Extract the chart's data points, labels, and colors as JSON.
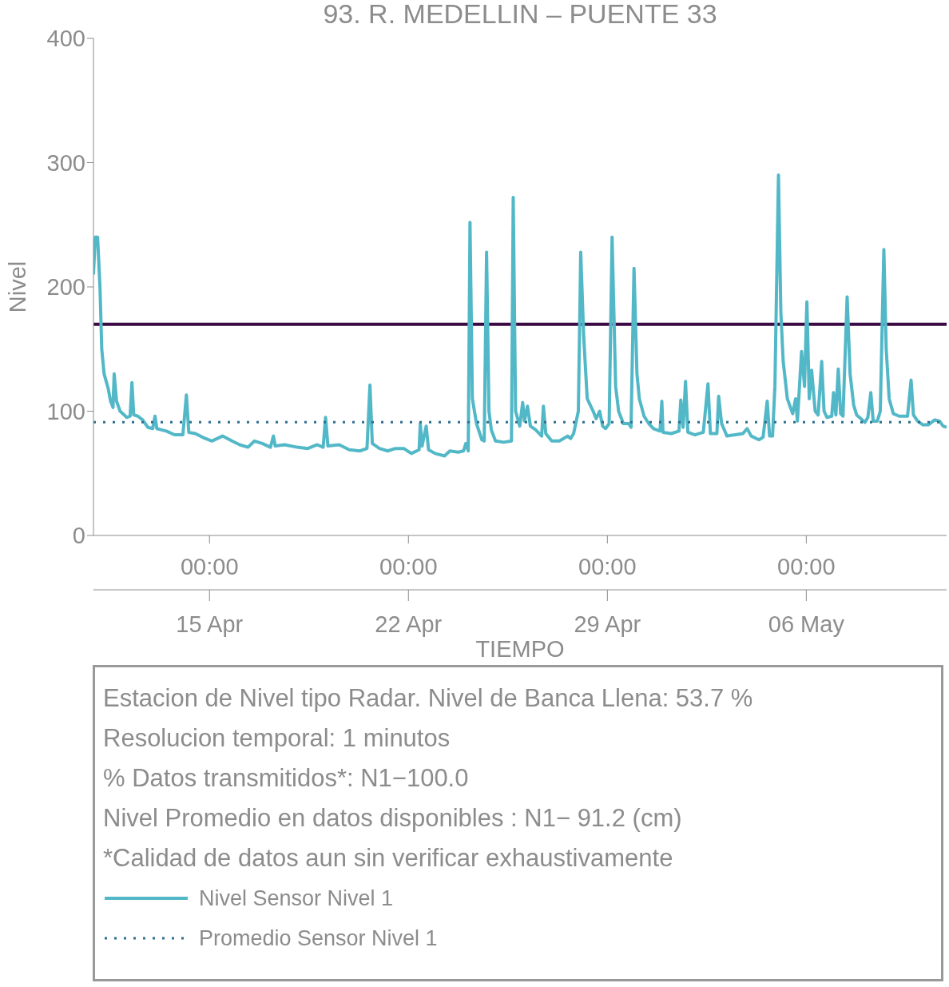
{
  "chart_data": {
    "type": "line",
    "title": "93. R. MEDELLIN – PUENTE 33",
    "xlabel": "TIEMPO",
    "ylabel": "Nivel",
    "annotations": [
      "Estacion de Nivel tipo Radar. Nivel de Banca Llena: 53.7 %",
      "Resolucion temporal: 1 minutos",
      "% Datos transmitidos*: N1−100.0",
      "Nivel Promedio en datos disponibles : N1− 91.2 (cm)",
      "*Calidad de datos aun sin verificar exhaustivamente"
    ],
    "xlim": [
      "--04-10T22:00",
      "--05-10T22:30"
    ],
    "xticks": [
      {
        "value": "--04-15T00:00",
        "label": "00:00"
      },
      {
        "value": "--04-22T00:00",
        "label": "00:00"
      },
      {
        "value": "--04-29T00:00",
        "label": "00:00"
      },
      {
        "value": "--05-06T00:00",
        "label": "00:00"
      }
    ],
    "x2lim": [
      "--04-10T22:00",
      "--05-10T22:30"
    ],
    "x2ticks": [
      {
        "value": "--04-15T00:00",
        "label": "15 Apr"
      },
      {
        "value": "--04-22T00:00",
        "label": "22 Apr"
      },
      {
        "value": "--04-29T00:00",
        "label": "29 Apr"
      },
      {
        "value": "--05-06T00:00",
        "label": "06 May"
      }
    ],
    "ylim": [
      0,
      400
    ],
    "yticks": [
      0,
      100,
      200,
      300,
      400
    ],
    "legend": "bottom",
    "marker": "none",
    "ref_lines": [
      {
        "axis": "y",
        "value": 170,
        "color": "#3b0a45",
        "line_style": "solid"
      }
    ],
    "series": [
      {
        "name": "Nivel Sensor Nivel 1",
        "color": "#52b8c7",
        "line_style": "solid",
        "x": [
          "--04-10T22:00",
          "--04-10T23:30",
          "--04-11T01:30",
          "--04-11T03:30",
          "--04-11T05:00",
          "--04-11T07:00",
          "--04-11T10:30",
          "--04-11T12:30",
          "--04-11T14:30",
          "--04-11T15:30",
          "--04-11T17:30",
          "--04-11T20:30",
          "--04-12T00:00",
          "--04-12T02:00",
          "--04-12T05:00",
          "--04-12T06:30",
          "--04-12T08:00",
          "--04-12T11:30",
          "--04-12T15:30",
          "--04-12T20:00",
          "--04-13T00:00",
          "--04-13T02:00",
          "--04-13T03:30",
          "--04-13T07:30",
          "--04-13T11:30",
          "--04-13T18:30",
          "--04-14T01:30",
          "--04-14T04:30",
          "--04-14T06:30",
          "--04-14T12:00",
          "--04-14T20:30",
          "--04-15T02:00",
          "--04-15T11:00",
          "--04-15T19:00",
          "--04-16T01:30",
          "--04-16T08:30",
          "--04-16T14:00",
          "--04-16T20:30",
          "--04-17T03:30",
          "--04-17T06:00",
          "--04-17T07:30",
          "--04-17T15:30",
          "--04-18T02:00",
          "--04-18T11:00",
          "--04-18T19:00",
          "--04-19T00:00",
          "--04-19T02:00",
          "--04-19T04:00",
          "--04-19T13:30",
          "--04-19T22:00",
          "--04-20T07:00",
          "--04-20T13:00",
          "--04-20T15:30",
          "--04-20T17:30",
          "--04-20T23:30",
          "--04-21T06:30",
          "--04-21T13:00",
          "--04-21T20:00",
          "--04-22T02:30",
          "--04-22T09:00",
          "--04-22T10:00",
          "--04-22T11:30",
          "--04-22T15:00",
          "--04-22T17:00",
          "--04-22T22:30",
          "--04-23T06:30",
          "--04-23T11:00",
          "--04-23T18:00",
          "--04-23T22:30",
          "--04-24T00:30",
          "--04-24T02:30",
          "--04-24T04:00",
          "--04-24T06:00",
          "--04-24T09:30",
          "--04-24T14:00",
          "--04-24T16:00",
          "--04-24T18:00",
          "--04-24T20:00",
          "--04-24T22:00",
          "--04-25T01:30",
          "--04-25T08:30",
          "--04-25T15:00",
          "--04-25T16:30",
          "--04-25T18:30",
          "--04-25T22:00",
          "--04-26T00:30",
          "--04-26T02:00",
          "--04-26T04:30",
          "--04-26T07:00",
          "--04-26T11:30",
          "--04-26T16:30",
          "--04-26T18:00",
          "--04-26T20:00",
          "--04-27T01:00",
          "--04-27T07:30",
          "--04-27T14:30",
          "--04-27T17:00",
          "--04-27T19:30",
          "--04-27T23:30",
          "--04-28T01:30",
          "--04-28T04:00",
          "--04-28T07:00",
          "--04-28T12:00",
          "--04-28T14:30",
          "--04-28T17:30",
          "--04-28T20:00",
          "--04-28T22:30",
          "--04-29T01:30",
          "--04-29T04:00",
          "--04-29T07:00",
          "--04-29T09:30",
          "--04-29T13:30",
          "--04-29T18:00",
          "--04-29T20:00",
          "--04-29T22:30",
          "--04-30T01:00",
          "--04-30T03:00",
          "--04-30T07:00",
          "--04-30T11:00",
          "--04-30T15:00",
          "--04-30T20:30",
          "--04-30T22:00",
          "--04-30T23:00",
          "--05-01T06:00",
          "--05-01T12:30",
          "--05-01T14:00",
          "--05-01T16:00",
          "--05-01T18:00",
          "--05-01T20:00",
          "--05-02T02:00",
          "--05-02T09:00",
          "--05-02T13:00",
          "--05-02T15:00",
          "--05-02T20:30",
          "--05-02T22:00",
          "--05-03T00:30",
          "--05-03T05:00",
          "--05-03T12:00",
          "--05-03T18:30",
          "--05-03T22:00",
          "--05-04T01:30",
          "--05-04T08:00",
          "--05-04T11:30",
          "--05-04T15:00",
          "--05-04T17:00",
          "--05-04T19:30",
          "--05-04T21:30",
          "--05-05T00:30",
          "--05-05T02:30",
          "--05-05T04:30",
          "--05-05T08:00",
          "--05-05T12:30",
          "--05-05T15:00",
          "--05-05T16:30",
          "--05-05T20:00",
          "--05-05T22:30",
          "--05-06T00:30",
          "--05-06T02:30",
          "--05-06T04:30",
          "--05-06T07:30",
          "--05-06T10:00",
          "--05-06T13:00",
          "--05-06T15:00",
          "--05-06T17:30",
          "--05-06T21:30",
          "--05-06T23:00",
          "--05-07T01:00",
          "--05-07T03:00",
          "--05-07T05:00",
          "--05-07T07:00",
          "--05-07T10:30",
          "--05-07T13:00",
          "--05-07T16:00",
          "--05-07T18:30",
          "--05-07T22:00",
          "--05-08T01:30",
          "--05-08T04:00",
          "--05-08T06:30",
          "--05-08T08:30",
          "--05-08T12:00",
          "--05-08T14:30",
          "--05-08T17:30",
          "--05-08T19:30",
          "--05-08T22:00",
          "--05-09T01:30",
          "--05-09T06:30",
          "--05-09T13:30",
          "--05-09T16:30",
          "--05-09T18:30",
          "--05-09T22:00",
          "--05-10T02:30",
          "--05-10T07:00",
          "--05-10T12:30",
          "--05-10T16:30",
          "--05-10T19:30",
          "--05-10T22:30"
        ],
        "values": [
          210,
          240,
          240,
          200,
          150,
          130,
          118,
          108,
          103,
          130,
          108,
          100,
          97,
          95,
          96,
          123,
          97,
          96,
          93,
          87,
          86,
          96,
          86,
          85,
          84,
          81,
          81,
          113,
          83,
          82,
          78,
          76,
          80,
          76,
          73,
          71,
          76,
          74,
          71,
          80,
          72,
          73,
          71,
          70,
          73,
          71,
          95,
          72,
          73,
          69,
          68,
          70,
          121,
          74,
          70,
          68,
          70,
          70,
          66,
          69,
          90,
          72,
          88,
          69,
          66,
          64,
          68,
          67,
          68,
          74,
          68,
          252,
          110,
          90,
          77,
          76,
          228,
          100,
          85,
          76,
          75,
          76,
          272,
          100,
          88,
          107,
          92,
          104,
          88,
          85,
          80,
          104,
          82,
          76,
          76,
          80,
          78,
          82,
          100,
          228,
          160,
          110,
          100,
          94,
          100,
          88,
          86,
          90,
          240,
          120,
          100,
          90,
          90,
          87,
          215,
          130,
          110,
          96,
          90,
          86,
          84,
          108,
          83,
          82,
          84,
          109,
          87,
          124,
          83,
          81,
          83,
          122,
          82,
          82,
          112,
          90,
          80,
          81,
          82,
          86,
          80,
          77,
          79,
          108,
          80,
          80,
          120,
          290,
          180,
          140,
          110,
          98,
          110,
          92,
          148,
          120,
          188,
          110,
          133,
          100,
          97,
          140,
          100,
          95,
          96,
          115,
          97,
          134,
          98,
          96,
          192,
          130,
          105,
          97,
          94,
          91,
          95,
          115,
          92,
          92,
          100,
          230,
          150,
          110,
          98,
          96,
          96,
          125,
          97,
          92,
          89,
          89,
          93,
          92,
          88,
          87
        ]
      },
      {
        "name": "Promedio Sensor Nivel 1",
        "color": "#2e6f8e",
        "line_style": "dotted",
        "x": [
          "--04-10T22:00",
          "--05-10T22:30"
        ],
        "values": [
          91.2,
          91.2
        ]
      }
    ]
  }
}
